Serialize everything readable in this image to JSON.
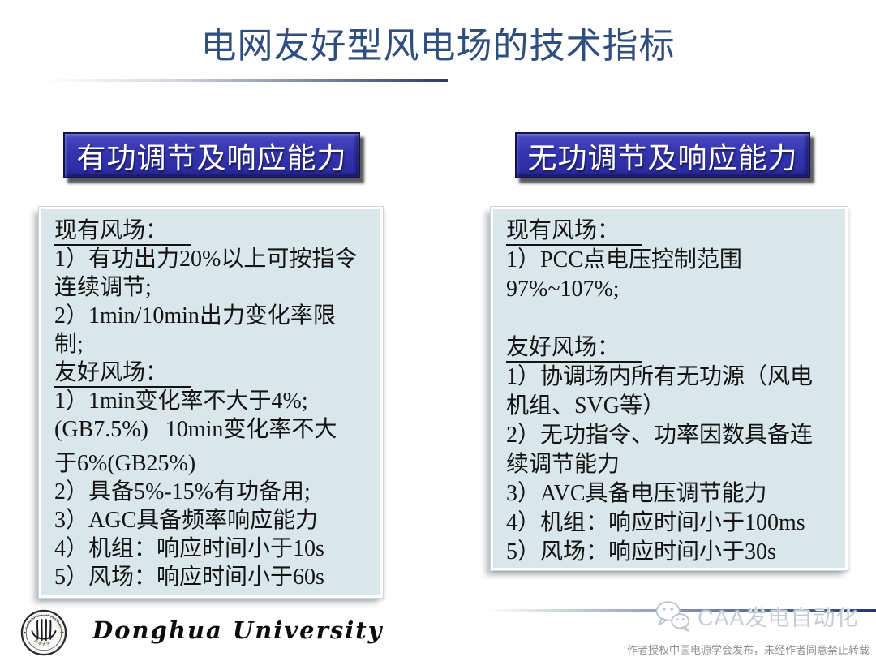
{
  "slide": {
    "title": "电网友好型风电场的技术指标",
    "colors": {
      "title_text": "#2F4E80",
      "header_box_fill": "#3434B0",
      "header_box_border": "#11114D",
      "header_text": "#FFFFFF",
      "content_box_bg": "#D9E6EA",
      "body_text": "#141414",
      "rule_gradient_dark": "#2B3A6B",
      "watermark_text_color": "#C6CCD6",
      "disclaimer_text_color": "#8F8F8F"
    },
    "columns": [
      {
        "header": "有功调节及响应能力",
        "lines": [
          {
            "text": "现有风场：",
            "underline": true
          },
          {
            "text": "1）有功出力20%以上可按指令"
          },
          {
            "text": "连续调节;"
          },
          {
            "text": "2）1min/10min出力变化率限"
          },
          {
            "text": "制;"
          },
          {
            "text": "友好风场：",
            "underline": true
          },
          {
            "text": "1）1min变化率不大于4%;"
          },
          {
            "text": "(GB7.5%)   10min变化率不大"
          },
          {
            "text": "于6%(GB25%)",
            "spaced": true
          },
          {
            "text": "2）具备5%-15%有功备用;"
          },
          {
            "text": "3）AGC具备频率响应能力"
          },
          {
            "text": "4）机组：响应时间小于10s"
          },
          {
            "text": "5）风场：响应时间小于60s"
          }
        ]
      },
      {
        "header": "无功调节及响应能力",
        "lines": [
          {
            "text": "现有风场：",
            "underline": true
          },
          {
            "text": "1）PCC点电压控制范围"
          },
          {
            "text": "97%~107%;"
          },
          {
            "text": ""
          },
          {
            "text": "友好风场：",
            "underline": true
          },
          {
            "text": "1）协调场内所有无功源（风电"
          },
          {
            "text": "机组、SVG等）"
          },
          {
            "text": "2）无功指令、功率因数具备连"
          },
          {
            "text": "续调节能力"
          },
          {
            "text": "3）AVC具备电压调节能力"
          },
          {
            "text": "4）机组：响应时间小于100ms"
          },
          {
            "text": "5）风场：响应时间小于30s"
          }
        ]
      }
    ],
    "footer": {
      "university_name": "Donghua University",
      "seal_rim_top": "DONGHUA UNIVERSITY",
      "seal_rim_bottom": "东华大学",
      "watermark": "CAA发电自动化",
      "disclaimer": "作者授权中国电源学会发布，未经作者同意禁止转载"
    }
  }
}
